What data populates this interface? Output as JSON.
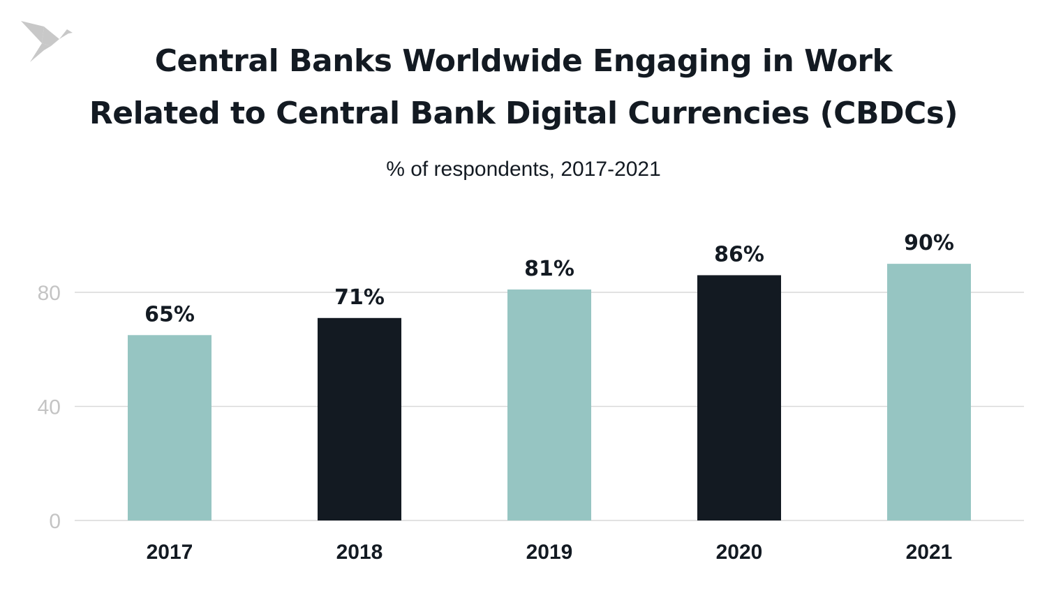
{
  "chart_data": {
    "type": "bar",
    "title_lines": [
      "Central Banks Worldwide Engaging in Work",
      "Related to Central Bank Digital Currencies (CBDCs)"
    ],
    "subtitle": "% of respondents, 2017-2021",
    "categories": [
      "2017",
      "2018",
      "2019",
      "2020",
      "2021"
    ],
    "values": [
      65,
      71,
      81,
      86,
      90
    ],
    "data_labels": [
      "65%",
      "71%",
      "81%",
      "86%",
      "90%"
    ],
    "bar_colors": [
      "#96c5c2",
      "#131a22",
      "#96c5c2",
      "#131a22",
      "#96c5c2"
    ],
    "yticks": [
      0,
      40,
      80
    ],
    "ylim": [
      0,
      90
    ],
    "grid": true,
    "xlabel": "",
    "ylabel": ""
  },
  "logo": {
    "icon": "origami-bird-icon",
    "color": "#c8c8c8"
  }
}
